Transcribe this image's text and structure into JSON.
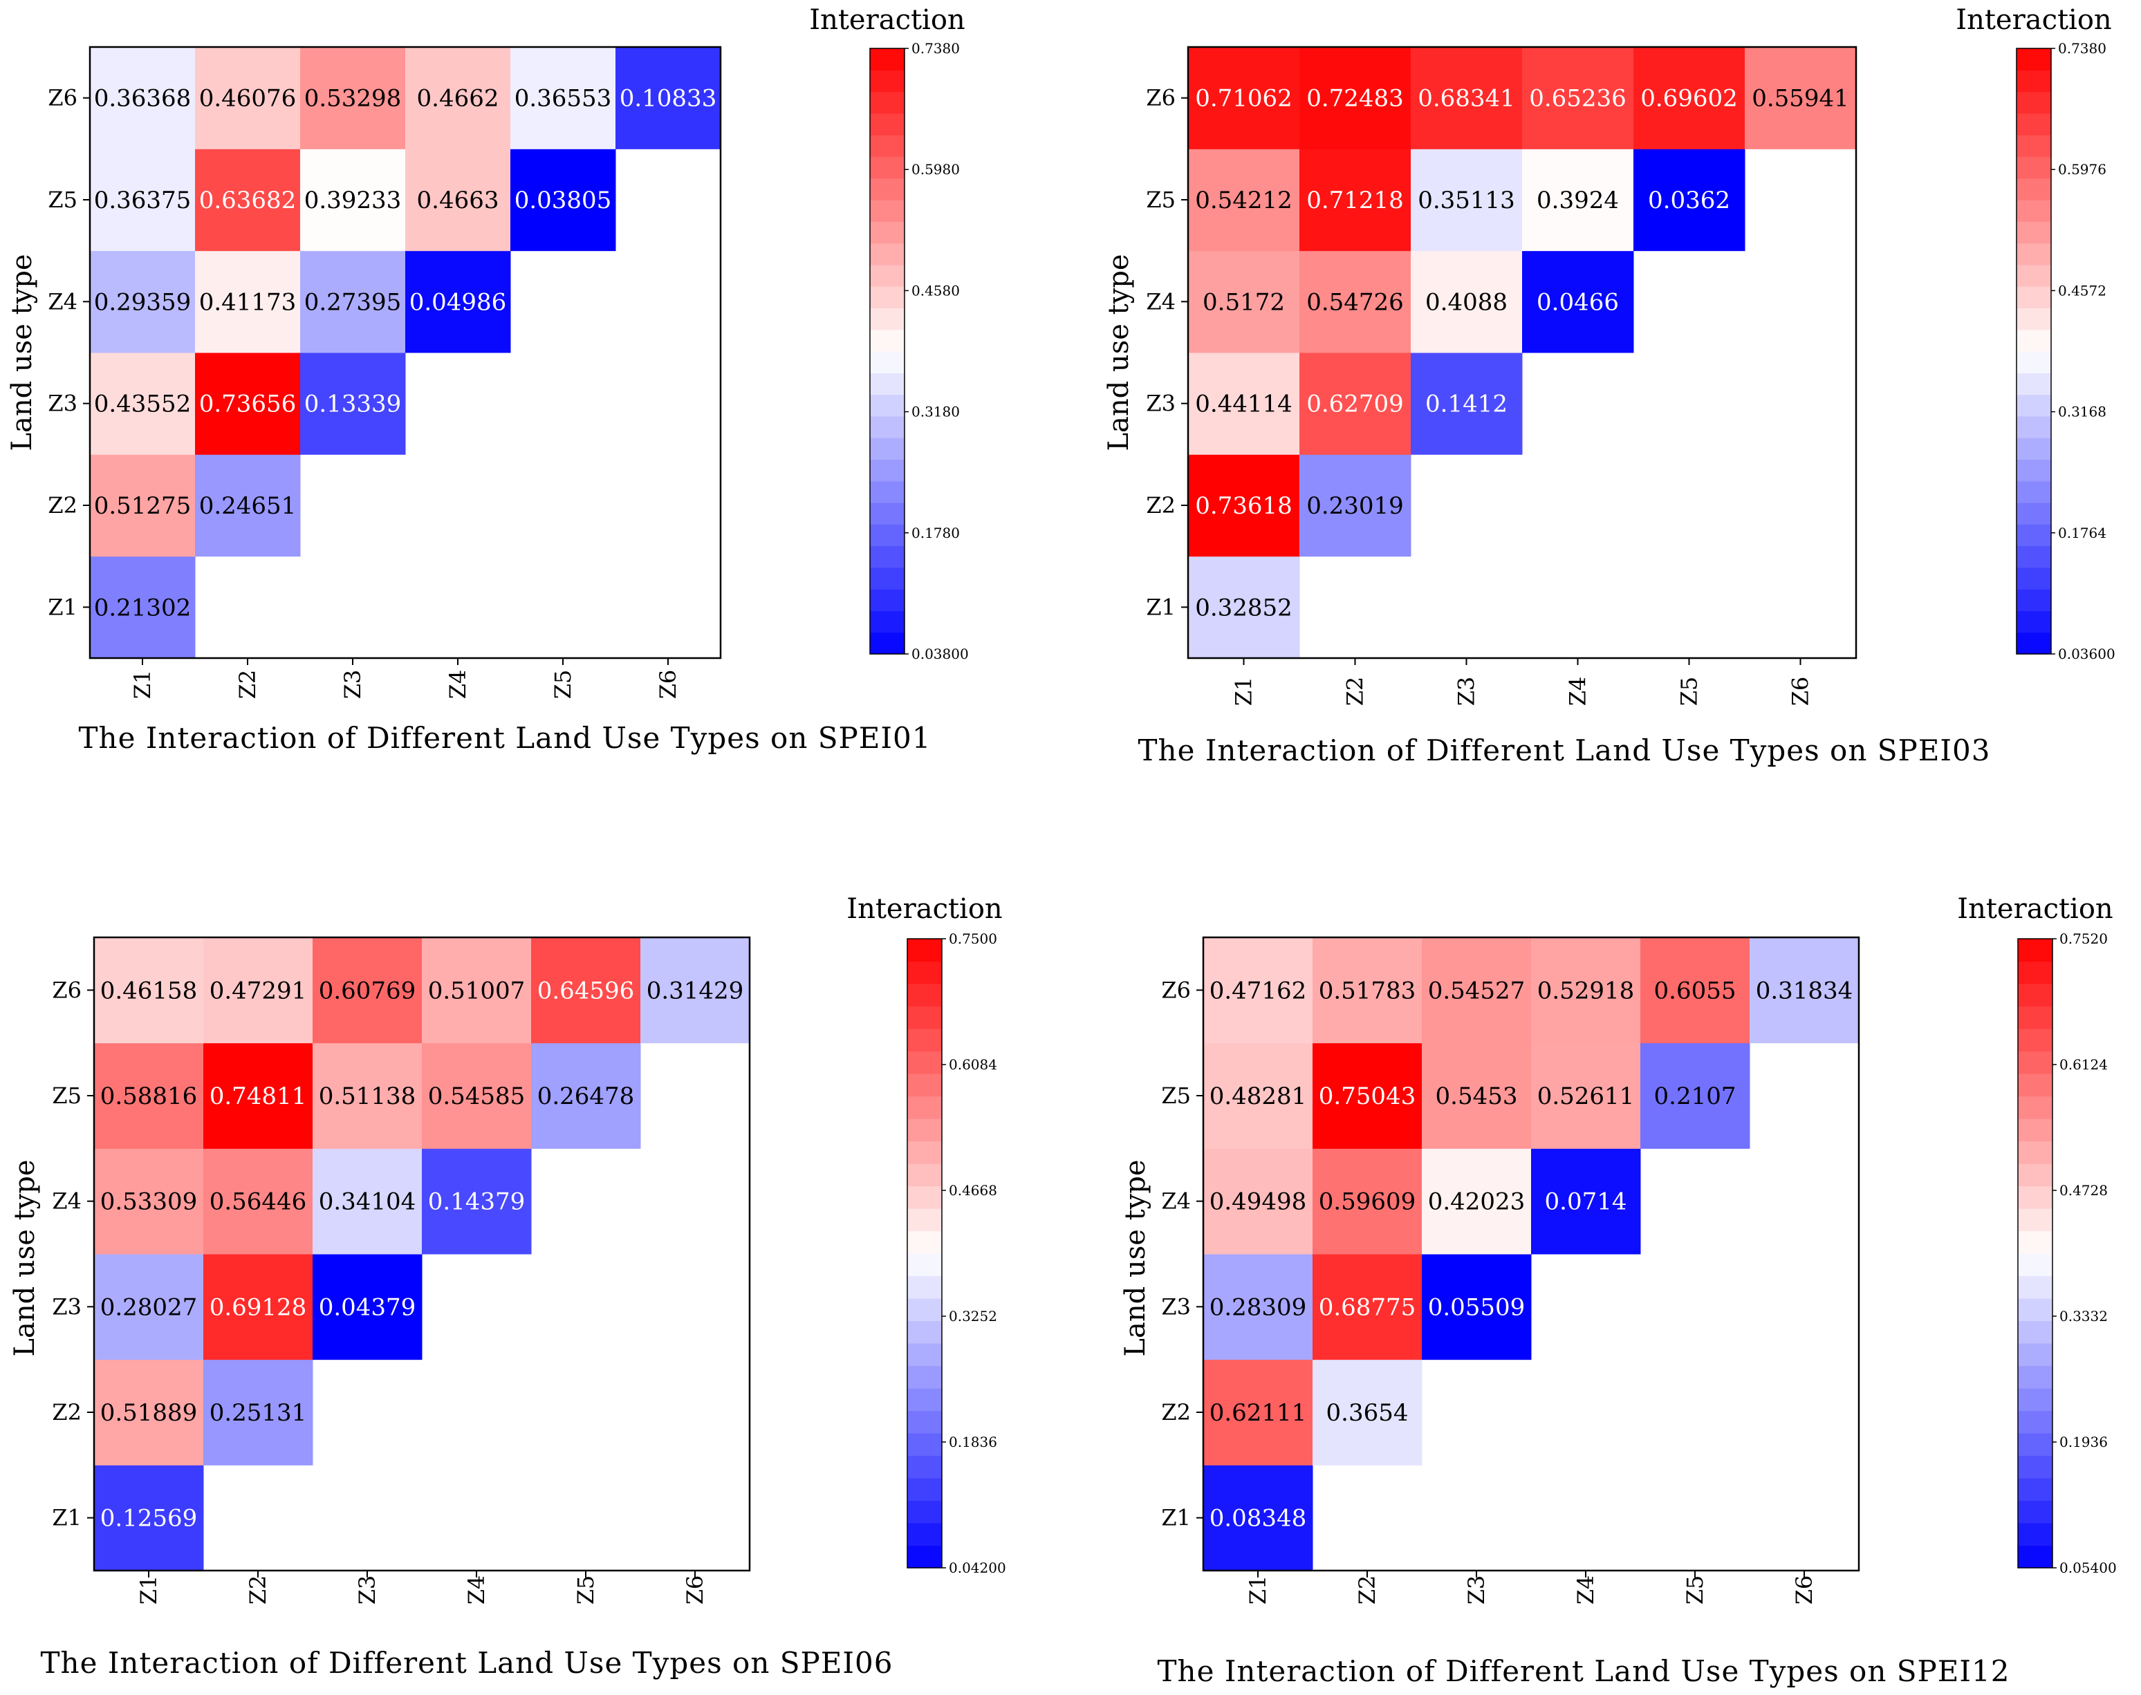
{
  "colors": {
    "low": "#0000ff",
    "mid": "#ffffff",
    "high": "#ff0000",
    "frame": "#000000"
  },
  "chart_data": [
    {
      "type": "heatmap",
      "title": "The Interaction of Different Land Use Types on SPEI01",
      "ylabel": "Land use type",
      "x_categories": [
        "Z1",
        "Z2",
        "Z3",
        "Z4",
        "Z5",
        "Z6"
      ],
      "y_categories": [
        "Z1",
        "Z2",
        "Z3",
        "Z4",
        "Z5",
        "Z6"
      ],
      "values": [
        [
          0.21302,
          null,
          null,
          null,
          null,
          null
        ],
        [
          0.51275,
          0.24651,
          null,
          null,
          null,
          null
        ],
        [
          0.43552,
          0.73656,
          0.13339,
          null,
          null,
          null
        ],
        [
          0.29359,
          0.41173,
          0.27395,
          0.04986,
          null,
          null
        ],
        [
          0.36375,
          0.63682,
          0.39233,
          0.4663,
          0.03805,
          null
        ],
        [
          0.36368,
          0.46076,
          0.53298,
          0.4662,
          0.36553,
          0.10833
        ]
      ],
      "labels": [
        [
          "0.21302",
          null,
          null,
          null,
          null,
          null
        ],
        [
          "0.51275",
          "0.24651",
          null,
          null,
          null,
          null
        ],
        [
          "0.43552",
          "0.73656",
          "0.13339",
          null,
          null,
          null
        ],
        [
          "0.29359",
          "0.41173",
          "0.27395",
          "0.04986",
          null,
          null
        ],
        [
          "0.36375",
          "0.63682",
          "0.39233",
          "0.4663",
          "0.03805",
          null
        ],
        [
          "0.36368",
          "0.46076",
          "0.53298",
          "0.4662",
          "0.36553",
          "0.10833"
        ]
      ],
      "colorbar": {
        "title": "Interaction",
        "range": [
          0.038,
          0.738
        ],
        "ticks": [
          "0.03800",
          "0.1780",
          "0.3180",
          "0.4580",
          "0.5980",
          "0.7380"
        ]
      }
    },
    {
      "type": "heatmap",
      "title": "The Interaction of Different Land Use Types on SPEI03",
      "ylabel": "Land use type",
      "x_categories": [
        "Z1",
        "Z2",
        "Z3",
        "Z4",
        "Z5",
        "Z6"
      ],
      "y_categories": [
        "Z1",
        "Z2",
        "Z3",
        "Z4",
        "Z5",
        "Z6"
      ],
      "values": [
        [
          0.32852,
          null,
          null,
          null,
          null,
          null
        ],
        [
          0.73618,
          0.23019,
          null,
          null,
          null,
          null
        ],
        [
          0.44114,
          0.62709,
          0.1412,
          null,
          null,
          null
        ],
        [
          0.5172,
          0.54726,
          0.4088,
          0.0466,
          null,
          null
        ],
        [
          0.54212,
          0.71218,
          0.35113,
          0.3924,
          0.0362,
          null
        ],
        [
          0.71062,
          0.72483,
          0.68341,
          0.65236,
          0.69602,
          0.55941
        ]
      ],
      "labels": [
        [
          "0.32852",
          null,
          null,
          null,
          null,
          null
        ],
        [
          "0.73618",
          "0.23019",
          null,
          null,
          null,
          null
        ],
        [
          "0.44114",
          "0.62709",
          "0.1412",
          null,
          null,
          null
        ],
        [
          "0.5172",
          "0.54726",
          "0.4088",
          "0.0466",
          null,
          null
        ],
        [
          "0.54212",
          "0.71218",
          "0.35113",
          "0.3924",
          "0.0362",
          null
        ],
        [
          "0.71062",
          "0.72483",
          "0.68341",
          "0.65236",
          "0.69602",
          "0.55941"
        ]
      ],
      "colorbar": {
        "title": "Interaction",
        "range": [
          0.036,
          0.738
        ],
        "ticks": [
          "0.03600",
          "0.1764",
          "0.3168",
          "0.4572",
          "0.5976",
          "0.7380"
        ]
      }
    },
    {
      "type": "heatmap",
      "title": "The Interaction of Different Land Use Types on SPEI06",
      "ylabel": "Land use type",
      "x_categories": [
        "Z1",
        "Z2",
        "Z3",
        "Z4",
        "Z5",
        "Z6"
      ],
      "y_categories": [
        "Z1",
        "Z2",
        "Z3",
        "Z4",
        "Z5",
        "Z6"
      ],
      "values": [
        [
          0.12569,
          null,
          null,
          null,
          null,
          null
        ],
        [
          0.51889,
          0.25131,
          null,
          null,
          null,
          null
        ],
        [
          0.28027,
          0.69128,
          0.04379,
          null,
          null,
          null
        ],
        [
          0.53309,
          0.56446,
          0.34104,
          0.14379,
          null,
          null
        ],
        [
          0.58816,
          0.74811,
          0.51138,
          0.54585,
          0.26478,
          null
        ],
        [
          0.46158,
          0.47291,
          0.60769,
          0.51007,
          0.64596,
          0.31429
        ]
      ],
      "labels": [
        [
          "0.12569",
          null,
          null,
          null,
          null,
          null
        ],
        [
          "0.51889",
          "0.25131",
          null,
          null,
          null,
          null
        ],
        [
          "0.28027",
          "0.69128",
          "0.04379",
          null,
          null,
          null
        ],
        [
          "0.53309",
          "0.56446",
          "0.34104",
          "0.14379",
          null,
          null
        ],
        [
          "0.58816",
          "0.74811",
          "0.51138",
          "0.54585",
          "0.26478",
          null
        ],
        [
          "0.46158",
          "0.47291",
          "0.60769",
          "0.51007",
          "0.64596",
          "0.31429"
        ]
      ],
      "colorbar": {
        "title": "Interaction",
        "range": [
          0.042,
          0.75
        ],
        "ticks": [
          "0.04200",
          "0.1836",
          "0.3252",
          "0.4668",
          "0.6084",
          "0.7500"
        ]
      }
    },
    {
      "type": "heatmap",
      "title": "The Interaction of Different Land Use Types on SPEI12",
      "ylabel": "Land use type",
      "x_categories": [
        "Z1",
        "Z2",
        "Z3",
        "Z4",
        "Z5",
        "Z6"
      ],
      "y_categories": [
        "Z1",
        "Z2",
        "Z3",
        "Z4",
        "Z5",
        "Z6"
      ],
      "values": [
        [
          0.08348,
          null,
          null,
          null,
          null,
          null
        ],
        [
          0.62111,
          0.3654,
          null,
          null,
          null,
          null
        ],
        [
          0.28309,
          0.68775,
          0.05509,
          null,
          null,
          null
        ],
        [
          0.49498,
          0.59609,
          0.42023,
          0.0714,
          null,
          null
        ],
        [
          0.48281,
          0.75043,
          0.5453,
          0.52611,
          0.2107,
          null
        ],
        [
          0.47162,
          0.51783,
          0.54527,
          0.52918,
          0.6055,
          0.31834
        ]
      ],
      "labels": [
        [
          "0.08348",
          null,
          null,
          null,
          null,
          null
        ],
        [
          "0.62111",
          "0.3654",
          null,
          null,
          null,
          null
        ],
        [
          "0.28309",
          "0.68775",
          "0.05509",
          null,
          null,
          null
        ],
        [
          "0.49498",
          "0.59609",
          "0.42023",
          "0.0714",
          null,
          null
        ],
        [
          "0.48281",
          "0.75043",
          "0.5453",
          "0.52611",
          "0.2107",
          null
        ],
        [
          "0.47162",
          "0.51783",
          "0.54527",
          "0.52918",
          "0.6055",
          "0.31834"
        ]
      ],
      "colorbar": {
        "title": "Interaction",
        "range": [
          0.054,
          0.752
        ],
        "ticks": [
          "0.05400",
          "0.1936",
          "0.3332",
          "0.4728",
          "0.6124",
          "0.7520"
        ]
      }
    }
  ]
}
